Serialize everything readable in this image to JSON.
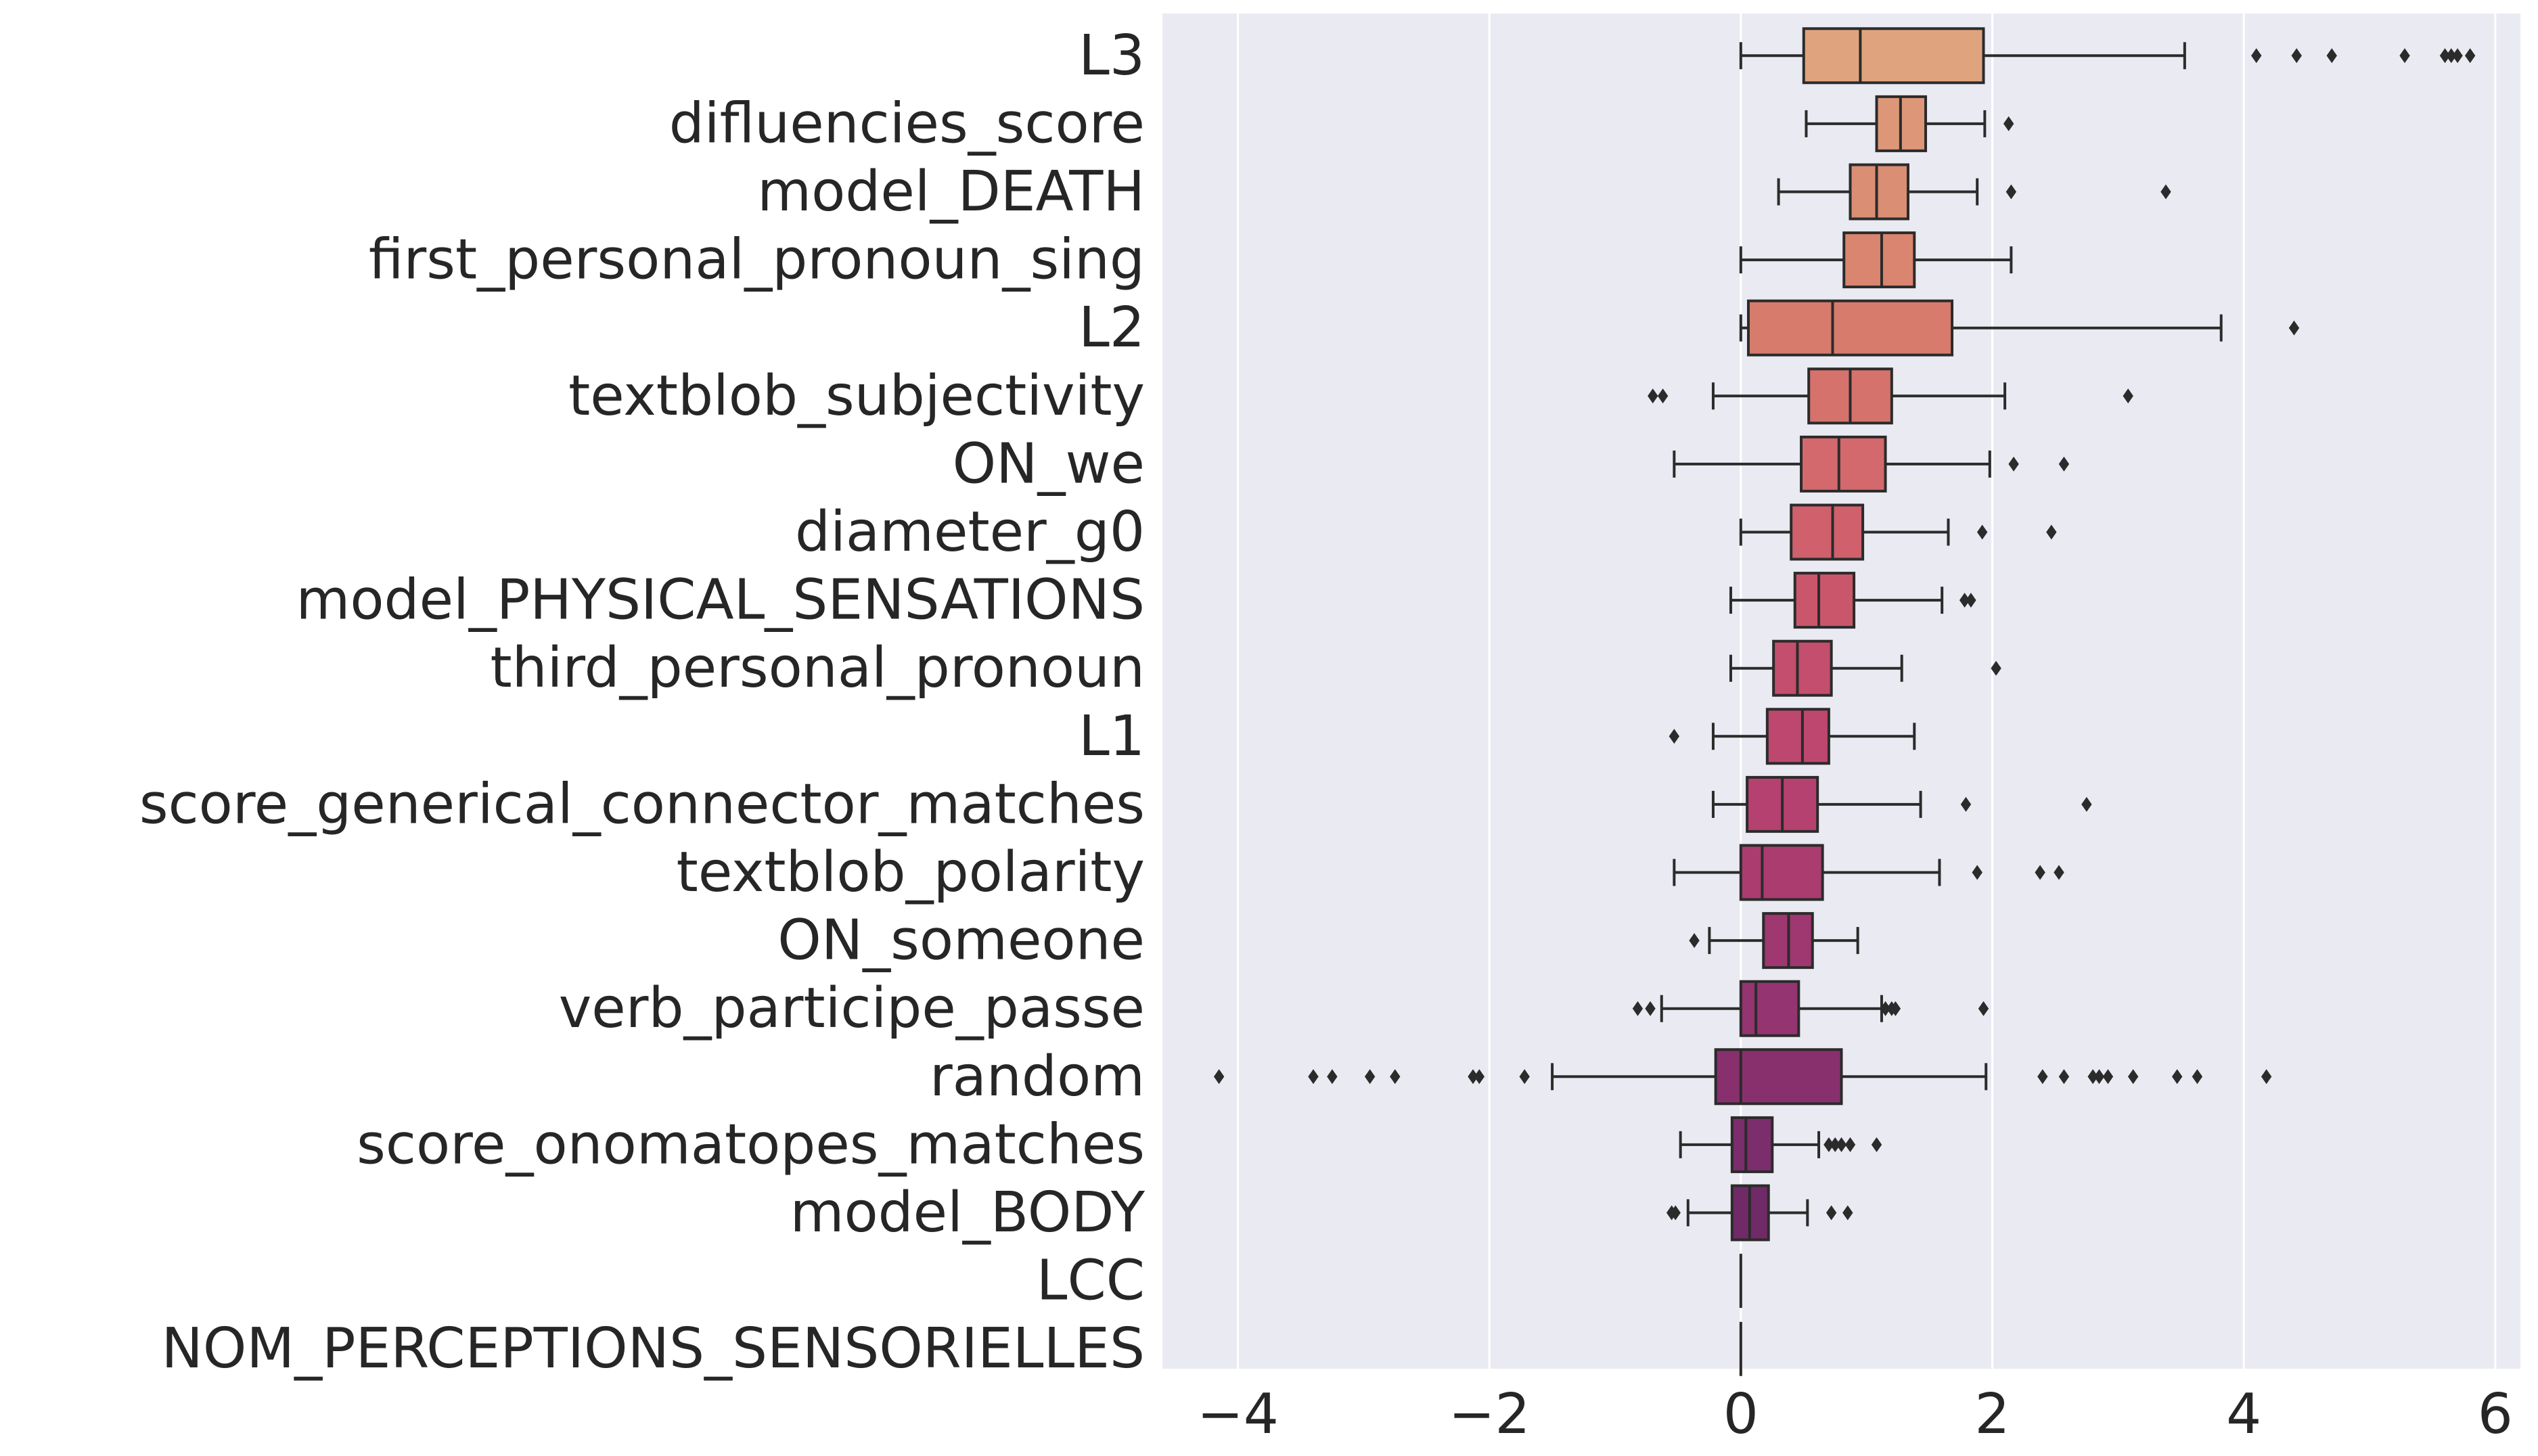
{
  "chart_data": {
    "type": "boxplot",
    "orientation": "horizontal",
    "xlim": [
      -4.6,
      6.2
    ],
    "x_ticks": [
      -4,
      -2,
      0,
      2,
      4,
      6
    ],
    "x_tick_labels": [
      "−4",
      "−2",
      "0",
      "2",
      "4",
      "6"
    ],
    "grid": true,
    "background": "#eaeaf2",
    "grid_color": "#ffffff",
    "line_color": "#2b2b2b",
    "categories": [
      {
        "label": "L3",
        "color": "#dfa47e",
        "whislo": 0.0,
        "q1": 0.5,
        "med": 0.95,
        "q3": 1.93,
        "whishi": 3.53,
        "fliers": [
          4.1,
          4.42,
          4.7,
          5.28,
          5.6,
          5.65,
          5.7,
          5.8
        ]
      },
      {
        "label": "difluencies_score",
        "color": "#dd9778",
        "whislo": 0.52,
        "q1": 1.08,
        "med": 1.27,
        "q3": 1.47,
        "whishi": 1.94,
        "fliers": [
          2.13
        ]
      },
      {
        "label": "model_DEATH",
        "color": "#da8e74",
        "whislo": 0.3,
        "q1": 0.87,
        "med": 1.08,
        "q3": 1.33,
        "whishi": 1.88,
        "fliers": [
          2.15,
          3.38
        ]
      },
      {
        "label": "first_personal_pronoun_sing",
        "color": "#d9856f",
        "whislo": 0.0,
        "q1": 0.82,
        "med": 1.12,
        "q3": 1.38,
        "whishi": 2.15,
        "fliers": []
      },
      {
        "label": "L2",
        "color": "#d77b6c",
        "whislo": 0.0,
        "q1": 0.06,
        "med": 0.73,
        "q3": 1.68,
        "whishi": 3.82,
        "fliers": [
          4.4
        ]
      },
      {
        "label": "textblob_subjectivity",
        "color": "#d5726c",
        "whislo": -0.22,
        "q1": 0.54,
        "med": 0.87,
        "q3": 1.2,
        "whishi": 2.1,
        "fliers": [
          -0.7,
          -0.62,
          3.08
        ]
      },
      {
        "label": "ON_we",
        "color": "#d3696c",
        "whislo": -0.53,
        "q1": 0.48,
        "med": 0.78,
        "q3": 1.15,
        "whishi": 1.98,
        "fliers": [
          2.17,
          2.57
        ]
      },
      {
        "label": "diameter_g0",
        "color": "#cf606c",
        "whislo": 0.0,
        "q1": 0.4,
        "med": 0.73,
        "q3": 0.97,
        "whishi": 1.65,
        "fliers": [
          1.92,
          2.47
        ]
      },
      {
        "label": "model_PHYSICAL_SENSATIONS",
        "color": "#ca566c",
        "whislo": -0.08,
        "q1": 0.43,
        "med": 0.62,
        "q3": 0.9,
        "whishi": 1.6,
        "fliers": [
          1.78,
          1.83
        ]
      },
      {
        "label": "third_personal_pronoun",
        "color": "#c44e6d",
        "whislo": -0.08,
        "q1": 0.26,
        "med": 0.45,
        "q3": 0.72,
        "whishi": 1.28,
        "fliers": [
          2.03
        ]
      },
      {
        "label": "L1",
        "color": "#bd476e",
        "whislo": -0.22,
        "q1": 0.21,
        "med": 0.49,
        "q3": 0.7,
        "whishi": 1.38,
        "fliers": [
          -0.53
        ]
      },
      {
        "label": "score_generical_connector_matches",
        "color": "#b4416f",
        "whislo": -0.22,
        "q1": 0.05,
        "med": 0.33,
        "q3": 0.61,
        "whishi": 1.43,
        "fliers": [
          1.79,
          2.75
        ]
      },
      {
        "label": "textblob_polarity",
        "color": "#aa3c70",
        "whislo": -0.53,
        "q1": 0.0,
        "med": 0.17,
        "q3": 0.65,
        "whishi": 1.58,
        "fliers": [
          1.88,
          2.38,
          2.53
        ]
      },
      {
        "label": "ON_someone",
        "color": "#9f3770",
        "whislo": -0.25,
        "q1": 0.18,
        "med": 0.38,
        "q3": 0.57,
        "whishi": 0.93,
        "fliers": [
          -0.37
        ]
      },
      {
        "label": "verb_participe_passe",
        "color": "#943470",
        "whislo": -0.63,
        "q1": 0.0,
        "med": 0.12,
        "q3": 0.46,
        "whishi": 1.12,
        "fliers": [
          -0.82,
          -0.72,
          1.15,
          1.2,
          1.23,
          1.93
        ]
      },
      {
        "label": "random",
        "color": "#88306e",
        "whislo": -1.5,
        "q1": -0.2,
        "med": 0.0,
        "q3": 0.8,
        "whishi": 1.95,
        "fliers": [
          -4.15,
          -3.4,
          -3.25,
          -2.95,
          -2.75,
          -2.13,
          -2.08,
          -1.72,
          2.4,
          2.57,
          2.8,
          2.85,
          2.92,
          3.12,
          3.47,
          3.63,
          4.18
        ]
      },
      {
        "label": "score_onomatopes_matches",
        "color": "#7c2d6b",
        "whislo": -0.48,
        "q1": -0.07,
        "med": 0.04,
        "q3": 0.25,
        "whishi": 0.62,
        "fliers": [
          0.7,
          0.75,
          0.8,
          0.87,
          1.08
        ]
      },
      {
        "label": "model_BODY",
        "color": "#6f2a67",
        "whislo": -0.42,
        "q1": -0.07,
        "med": 0.07,
        "q3": 0.22,
        "whishi": 0.53,
        "fliers": [
          -0.55,
          -0.52,
          0.72,
          0.85
        ]
      },
      {
        "label": "LCC",
        "color": "#632762",
        "whislo": 0.0,
        "q1": 0.0,
        "med": 0.0,
        "q3": 0.0,
        "whishi": 0.0,
        "fliers": []
      },
      {
        "label": "NOM_PERCEPTIONS_SENSORIELLES",
        "color": "#58245c",
        "whislo": 0.0,
        "q1": 0.0,
        "med": 0.0,
        "q3": 0.0,
        "whishi": 0.0,
        "fliers": []
      }
    ]
  }
}
